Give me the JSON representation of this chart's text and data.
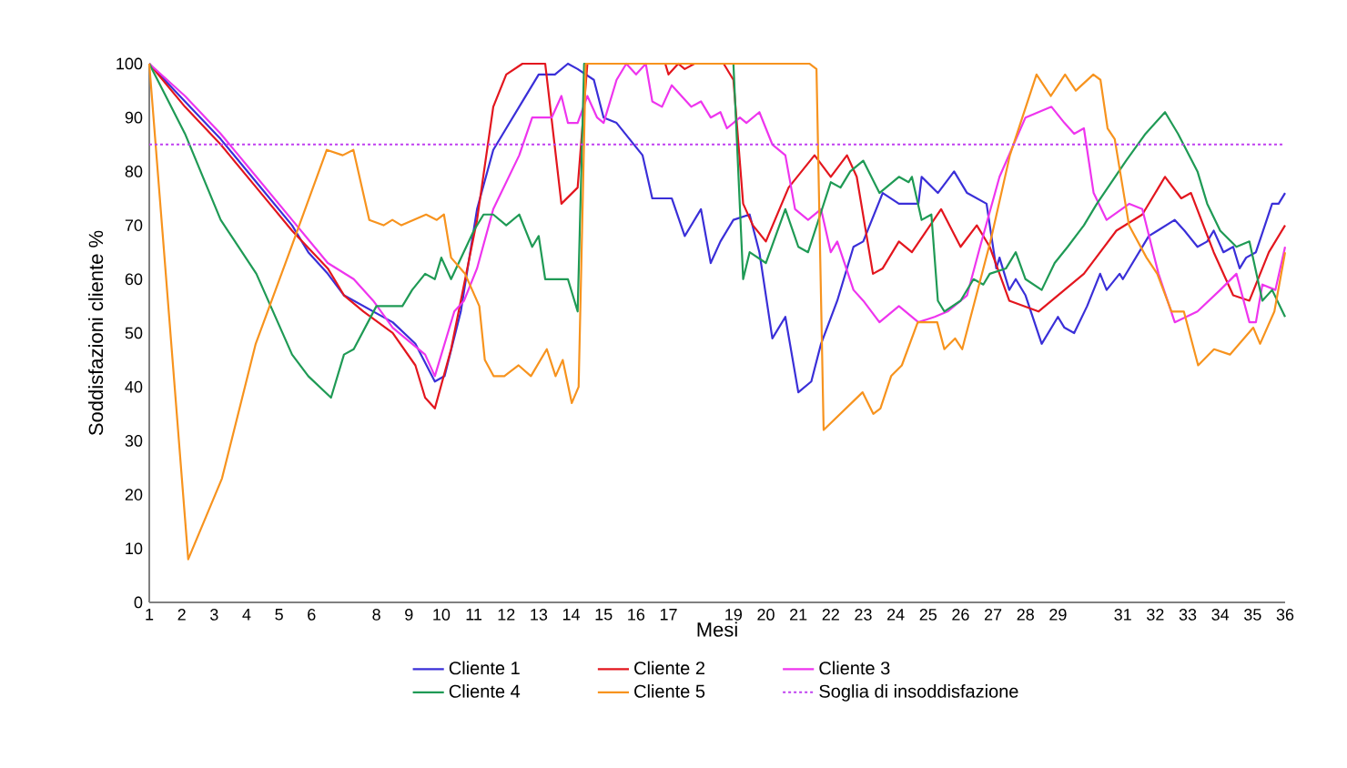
{
  "chart_data": {
    "type": "line",
    "xlabel": "Mesi",
    "ylabel": "Soddisfazioni cliente %",
    "xlim": [
      1,
      36
    ],
    "ylim": [
      0,
      100
    ],
    "xticks": [
      1,
      2,
      3,
      4,
      5,
      6,
      8,
      9,
      10,
      11,
      12,
      13,
      14,
      15,
      16,
      17,
      19,
      20,
      21,
      22,
      23,
      24,
      25,
      26,
      27,
      28,
      29,
      31,
      32,
      33,
      34,
      35,
      36
    ],
    "yticks": [
      0,
      10,
      20,
      30,
      40,
      50,
      60,
      70,
      80,
      90,
      100
    ],
    "legend": "bottom",
    "ref_lines": [
      {
        "axis": "y",
        "value": 85,
        "label": "Soglia di insoddisfazione",
        "color": "#c040f0",
        "line_style": "dotted"
      }
    ],
    "series": [
      {
        "name": "Cliente 1",
        "color": "#3a2fd8",
        "x": [
          1,
          2.1,
          3.2,
          4.3,
          5.4,
          5.9,
          6.5,
          7,
          7.6,
          8.5,
          9.2,
          9.8,
          10.1,
          10.6,
          11.1,
          11.6,
          12,
          12.5,
          13,
          13.5,
          13.9,
          14.2,
          14.7,
          15,
          15.4,
          16.2,
          16.5,
          17.1,
          17.5,
          18,
          18.3,
          18.6,
          19,
          19.5,
          19.8,
          20.2,
          20.6,
          21,
          21.4,
          21.7,
          22.2,
          22.7,
          23,
          23.6,
          24.1,
          24.7,
          24.8,
          25.3,
          25.8,
          26.2,
          26.8,
          27.1,
          27.2,
          27.5,
          27.7,
          28,
          28.5,
          29,
          29.2,
          29.5,
          29.9,
          30.3,
          30.5,
          30.9,
          31,
          31.8,
          32.6,
          32.9,
          33.3,
          33.6,
          33.8,
          34.1,
          34.4,
          34.6,
          34.8,
          35.1,
          35.6,
          35.8,
          36
        ],
        "values": [
          100,
          93,
          86,
          78,
          70,
          65,
          61,
          57,
          55,
          52,
          48,
          41,
          42,
          54,
          73,
          84,
          88,
          93,
          98,
          98,
          100,
          99,
          97,
          90,
          89,
          83,
          75,
          75,
          68,
          73,
          63,
          67,
          71,
          72,
          65,
          49,
          53,
          39,
          41,
          48,
          56,
          66,
          67,
          76,
          74,
          74,
          79,
          76,
          80,
          76,
          74,
          62,
          64,
          58,
          60,
          57,
          48,
          53,
          51,
          50,
          55,
          61,
          58,
          61,
          60,
          68,
          71,
          69,
          66,
          67,
          69,
          65,
          66,
          62,
          64,
          65,
          74,
          74,
          76
        ]
      },
      {
        "name": "Cliente 2",
        "color": "#e3161e",
        "x": [
          1,
          2.1,
          3.2,
          4.3,
          5.4,
          6.5,
          7,
          7.6,
          8.5,
          9.2,
          9.5,
          9.8,
          10.3,
          11.1,
          11.6,
          12,
          12.5,
          13.2,
          13.7,
          14.2,
          14.5,
          16.9,
          17,
          17.3,
          17.5,
          17.8,
          18.7,
          19,
          19.3,
          19.6,
          20,
          20.7,
          21.5,
          22,
          22.5,
          22.8,
          23.3,
          23.6,
          24.1,
          24.5,
          25.4,
          26,
          26.5,
          26.9,
          27.5,
          28.4,
          29.8,
          30.8,
          31.6,
          32.3,
          32.8,
          33.1,
          33.8,
          34.4,
          34.9,
          35.5,
          36
        ],
        "values": [
          100,
          92,
          85,
          77,
          69,
          62,
          57,
          54,
          50,
          44,
          38,
          36,
          47,
          71,
          92,
          98,
          100,
          100,
          74,
          77,
          100,
          100,
          98,
          100,
          99,
          100,
          100,
          97,
          74,
          70,
          67,
          77,
          83,
          79,
          83,
          79,
          61,
          62,
          67,
          65,
          73,
          66,
          70,
          66,
          56,
          54,
          61,
          69,
          72,
          79,
          75,
          76,
          65,
          57,
          56,
          65,
          70
        ]
      },
      {
        "name": "Cliente 3",
        "color": "#ee35ee",
        "x": [
          1,
          2.1,
          3.2,
          4.3,
          5.4,
          6.5,
          7.3,
          7.9,
          8.5,
          9.1,
          9.5,
          9.8,
          10.4,
          10.7,
          11.1,
          11.6,
          12.4,
          12.8,
          13.4,
          13.7,
          13.9,
          14.2,
          14.5,
          14.8,
          15,
          15.4,
          15.7,
          16,
          16.3,
          16.5,
          16.8,
          17.1,
          17.7,
          18,
          18.3,
          18.6,
          18.8,
          19.2,
          19.4,
          19.8,
          20.2,
          20.6,
          20.9,
          21.3,
          21.7,
          22,
          22.2,
          22.7,
          23,
          23.5,
          24.1,
          24.7,
          25.2,
          25.6,
          26.2,
          26.6,
          27.2,
          28,
          28.8,
          29.2,
          29.5,
          29.8,
          30.1,
          30.5,
          31.2,
          31.6,
          32.1,
          32.6,
          33.3,
          34,
          34.5,
          34.9,
          35.1,
          35.3,
          35.7,
          36
        ],
        "values": [
          100,
          94,
          87,
          79,
          71,
          63,
          60,
          56,
          51,
          48,
          46,
          42,
          54,
          56,
          62,
          73,
          83,
          90,
          90,
          94,
          89,
          89,
          94,
          90,
          89,
          97,
          100,
          98,
          100,
          93,
          92,
          96,
          92,
          93,
          90,
          91,
          88,
          90,
          89,
          91,
          85,
          83,
          73,
          71,
          73,
          65,
          67,
          58,
          56,
          52,
          55,
          52,
          53,
          54,
          57,
          66,
          79,
          90,
          92,
          89,
          87,
          88,
          76,
          71,
          74,
          73,
          61,
          52,
          54,
          58,
          61,
          52,
          52,
          59,
          58,
          66
        ]
      },
      {
        "name": "Cliente 4",
        "color": "#1f9a55",
        "x": [
          1,
          2.1,
          3.2,
          4.3,
          5.4,
          5.9,
          6.6,
          7,
          7.3,
          8,
          8.5,
          8.8,
          9.1,
          9.5,
          9.8,
          10,
          10.3,
          11,
          11.3,
          11.6,
          12,
          12.4,
          12.8,
          13,
          13.2,
          13.9,
          14.2,
          14.4,
          19,
          19.3,
          19.5,
          20,
          20.6,
          21,
          21.3,
          22,
          22.3,
          22.6,
          23,
          23.5,
          24.1,
          24.4,
          24.5,
          24.8,
          25.1,
          25.3,
          25.5,
          26,
          26.4,
          26.7,
          26.9,
          27.4,
          27.7,
          28,
          28.5,
          28.9,
          29.3,
          29.8,
          30.2,
          31.1,
          31.7,
          32.3,
          32.7,
          33.3,
          33.6,
          34,
          34.5,
          34.9,
          35.3,
          35.6,
          36
        ],
        "values": [
          100,
          87,
          71,
          61,
          46,
          42,
          38,
          46,
          47,
          55,
          55,
          55,
          58,
          61,
          60,
          64,
          60,
          69,
          72,
          72,
          70,
          72,
          66,
          68,
          60,
          60,
          54,
          100,
          100,
          60,
          65,
          63,
          73,
          66,
          65,
          78,
          77,
          80,
          82,
          76,
          79,
          78,
          79,
          71,
          72,
          56,
          54,
          56,
          60,
          59,
          61,
          62,
          65,
          60,
          58,
          63,
          66,
          70,
          74,
          82,
          87,
          91,
          87,
          80,
          74,
          69,
          66,
          67,
          56,
          58,
          53
        ]
      },
      {
        "name": "Cliente 5",
        "color": "#f7931e",
        "x": [
          1.0,
          2.2,
          3.24,
          4.28,
          5.38,
          6.47,
          6.96,
          7.29,
          7.78,
          8.22,
          8.49,
          8.77,
          9.53,
          9.86,
          10.08,
          10.3,
          10.73,
          11.17,
          11.34,
          11.61,
          11.94,
          12.38,
          12.76,
          13.25,
          13.52,
          13.74,
          14.02,
          14.23,
          14.45,
          21.34,
          21.56,
          21.78,
          22.98,
          23.31,
          23.53,
          23.86,
          24.19,
          24.68,
          25.28,
          25.5,
          25.83,
          26.05,
          26.92,
          27.52,
          28.34,
          28.78,
          29.22,
          29.55,
          30.09,
          30.31,
          30.53,
          30.75,
          31.19,
          31.73,
          32.06,
          32.5,
          32.88,
          33.32,
          33.81,
          34.3,
          35.02,
          35.23,
          35.67,
          36.0
        ],
        "values": [
          100,
          8,
          23,
          48,
          66,
          84,
          83,
          84,
          71,
          70,
          71,
          70,
          72,
          71,
          72,
          64,
          61,
          55,
          45,
          42,
          42,
          44,
          42,
          47,
          42,
          45,
          37,
          40,
          100,
          100,
          99,
          32,
          39,
          35,
          36,
          42,
          44,
          52,
          52,
          47,
          49,
          47,
          67,
          83,
          98,
          94,
          98,
          95,
          98,
          97,
          88,
          86,
          70,
          64,
          61,
          54,
          54,
          44,
          47,
          46,
          51,
          48,
          54,
          65
        ]
      }
    ]
  }
}
